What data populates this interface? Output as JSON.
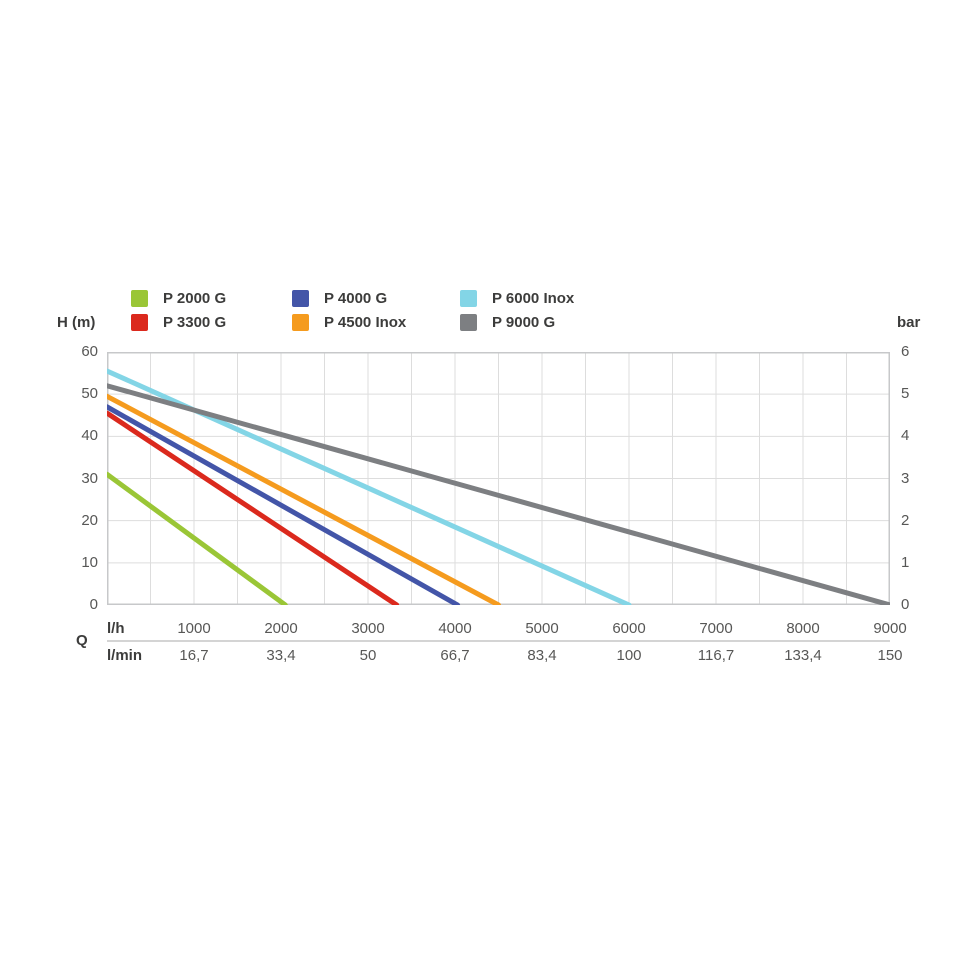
{
  "chart_data": {
    "type": "line",
    "legend_position": "top",
    "grid": true,
    "x_axis": {
      "quantity_label": "Q",
      "min": 0,
      "max": 9000,
      "grid_step": 500,
      "unit_rows": [
        {
          "unit": "l/h",
          "ticks": [
            "1000",
            "2000",
            "3000",
            "4000",
            "5000",
            "6000",
            "7000",
            "8000",
            "9000"
          ]
        },
        {
          "unit": "l/min",
          "ticks": [
            "16,7",
            "33,4",
            "50",
            "66,7",
            "83,4",
            "100",
            "116,7",
            "133,4",
            "150"
          ]
        }
      ]
    },
    "y_axis_left": {
      "title": "H (m)",
      "min": 0,
      "max": 60,
      "grid_step": 10,
      "ticks": [
        "60",
        "50",
        "40",
        "30",
        "20",
        "10",
        "0"
      ]
    },
    "y_axis_right": {
      "title": "bar",
      "min": 0,
      "max": 6,
      "ticks": [
        "6",
        "5",
        "4",
        "3",
        "2",
        "1",
        "0"
      ]
    },
    "series": [
      {
        "name": "P 2000 G",
        "color": "#9AC636",
        "points": [
          [
            0,
            31
          ],
          [
            2050,
            0
          ]
        ]
      },
      {
        "name": "P 3300 G",
        "color": "#DB291D",
        "points": [
          [
            0,
            45.5
          ],
          [
            3330,
            0
          ]
        ]
      },
      {
        "name": "P 4000 G",
        "color": "#4355A8",
        "points": [
          [
            0,
            47
          ],
          [
            4030,
            0
          ]
        ]
      },
      {
        "name": "P 4500 Inox",
        "color": "#F59B1E",
        "points": [
          [
            0,
            49.5
          ],
          [
            4500,
            0
          ]
        ]
      },
      {
        "name": "P 6000 Inox",
        "color": "#83D5E6",
        "points": [
          [
            0,
            55.5
          ],
          [
            6000,
            0
          ]
        ]
      },
      {
        "name": "P 9000 G",
        "color": "#7D7F82",
        "points": [
          [
            0,
            52
          ],
          [
            9000,
            0
          ]
        ]
      }
    ]
  }
}
